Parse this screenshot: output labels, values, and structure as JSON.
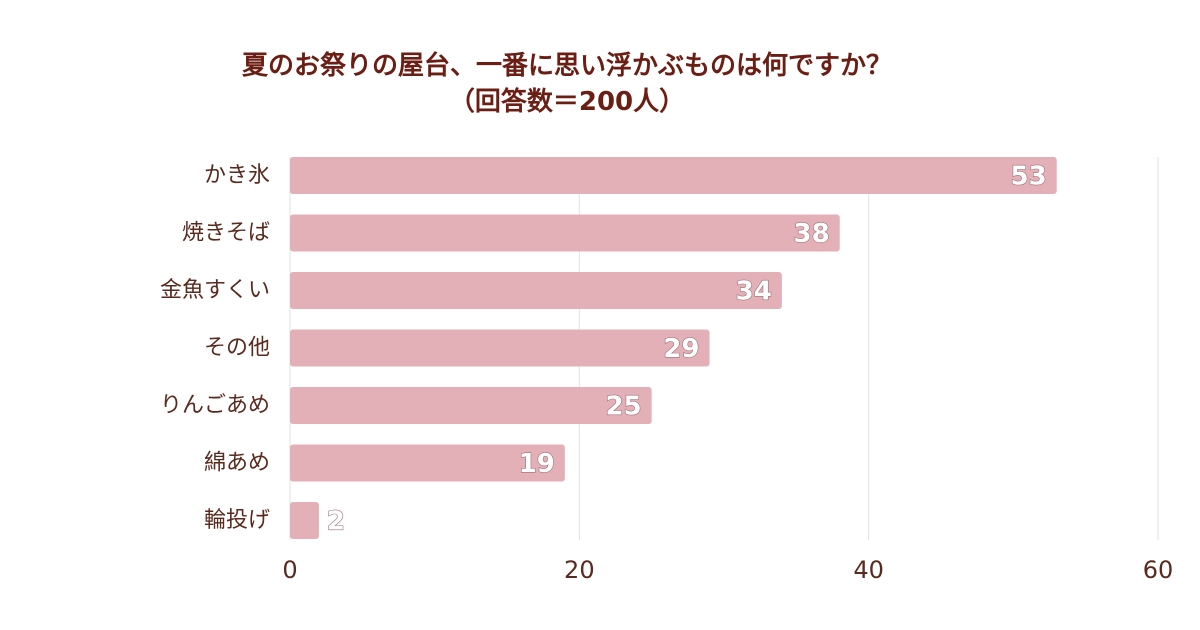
{
  "chart_data": {
    "type": "bar",
    "orientation": "horizontal",
    "title": "夏のお祭りの屋台、一番に思い浮かぶものは何ですか？",
    "subtitle": "（回答数＝200人）",
    "categories": [
      "かき氷",
      "焼きそば",
      "金魚すくい",
      "その他",
      "りんごあめ",
      "綿あめ",
      "輪投げ"
    ],
    "values": [
      53,
      38,
      34,
      29,
      25,
      19,
      2
    ],
    "xlim": [
      0,
      60
    ],
    "xticks": [
      0,
      20,
      40,
      60
    ],
    "grid": true,
    "bar_color": "#e3b0b7",
    "grid_color": "#e2e2e2",
    "text_color": "#5a2a1e",
    "title_color": "#6b1f14"
  }
}
